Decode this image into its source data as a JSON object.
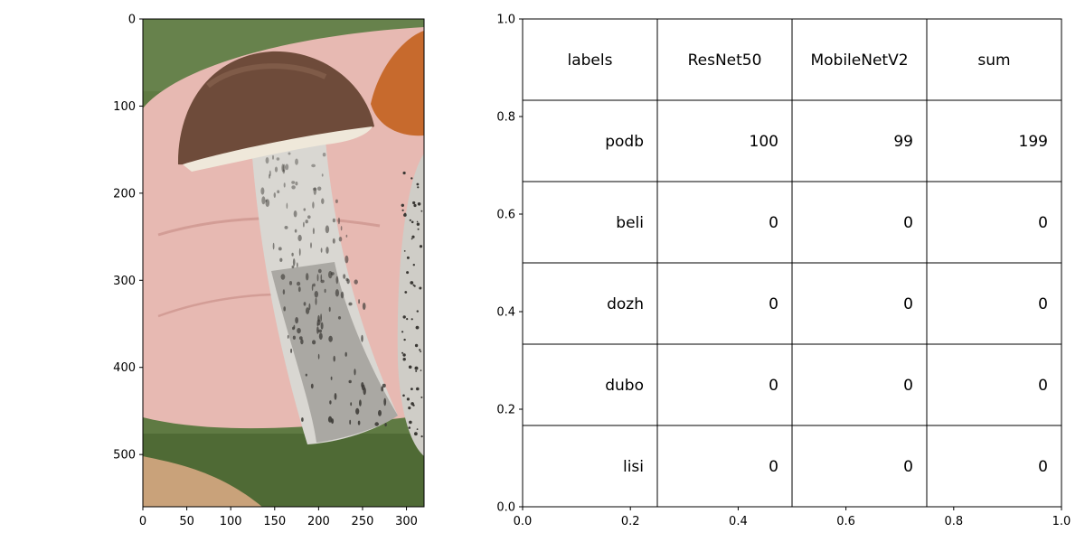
{
  "chart_data": [
    {
      "type": "image",
      "xlim": [
        0,
        320
      ],
      "ylim": [
        560,
        0
      ],
      "xticks": [
        0,
        50,
        100,
        150,
        200,
        250,
        300
      ],
      "yticks": [
        0,
        100,
        200,
        300,
        400,
        500
      ],
      "image": {
        "subject": "mushroom held in hand",
        "colors": {
          "cap": "#6e4b3a",
          "cap_highlight": "#8a6652",
          "stem": "#d9d7d2",
          "stem_scales": "#3a3834",
          "hand": "#e7b9b2",
          "background": "#5f7a43",
          "orange_cap": "#c76a2d"
        }
      }
    },
    {
      "type": "table",
      "xlim": [
        0,
        1
      ],
      "ylim": [
        0,
        1
      ],
      "xticks": [
        "0.0",
        "0.2",
        "0.4",
        "0.6",
        "0.8",
        "1.0"
      ],
      "yticks": [
        "0.0",
        "0.2",
        "0.4",
        "0.6",
        "0.8",
        "1.0"
      ],
      "columns": [
        "labels",
        "ResNet50",
        "MobileNetV2",
        "sum"
      ],
      "rows": [
        [
          "podb",
          "100",
          "99",
          "199"
        ],
        [
          "beli",
          "0",
          "0",
          "0"
        ],
        [
          "dozh",
          "0",
          "0",
          "0"
        ],
        [
          "dubo",
          "0",
          "0",
          "0"
        ],
        [
          "lisi",
          "0",
          "0",
          "0"
        ]
      ]
    }
  ]
}
